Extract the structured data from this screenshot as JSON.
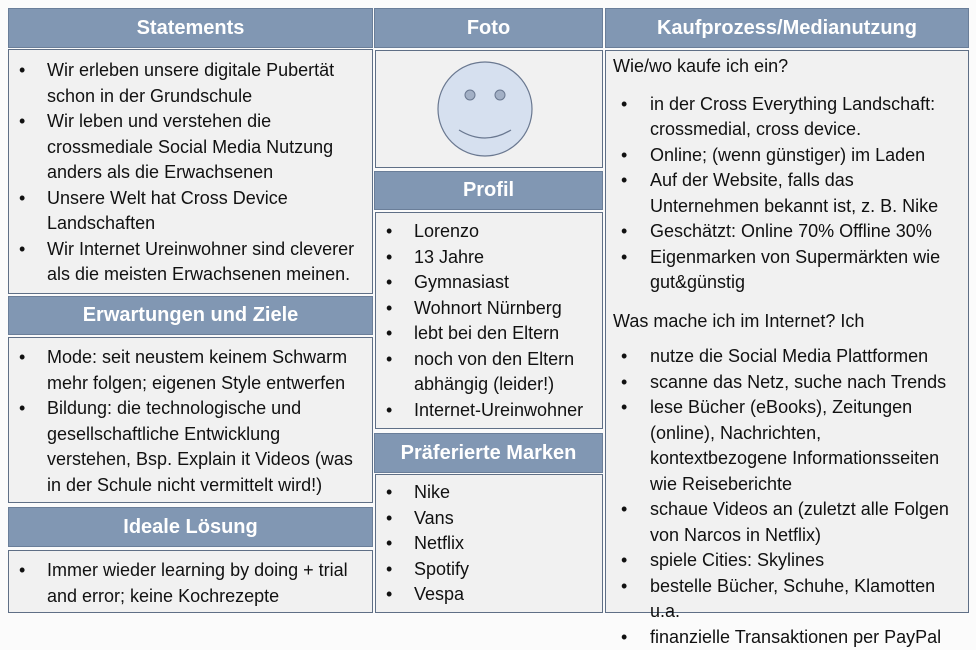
{
  "statements": {
    "title": "Statements",
    "items": [
      "Wir erleben unsere digitale Pubertät schon in der Grundschule",
      "Wir leben und verstehen die crossmediale Social Media Nutzung anders als die Erwachsenen",
      "Unsere Welt hat Cross Device Landschaften",
      "Wir Internet Ureinwohner sind cleverer als die meisten Erwachsenen meinen."
    ]
  },
  "erwartungen": {
    "title": "Erwartungen und Ziele",
    "items": [
      "Mode: seit neustem keinem Schwarm mehr folgen; eigenen Style entwerfen",
      "Bildung: die technologische und gesellschaftliche Entwicklung verstehen, Bsp. Explain it Videos (was in der Schule nicht vermittelt wird!)"
    ]
  },
  "loesung": {
    "title": "Ideale Lösung",
    "items": [
      "Immer wieder learning by doing + trial and error; keine Kochrezepte"
    ]
  },
  "foto": {
    "title": "Foto",
    "icon": "smiley-face-icon"
  },
  "profil": {
    "title": "Profil",
    "items": [
      "Lorenzo",
      "13 Jahre",
      "Gymnasiast",
      "Wohnort Nürnberg",
      "lebt bei den Eltern",
      "noch von den Eltern abhängig (leider!)",
      "Internet-Ureinwohner"
    ]
  },
  "marken": {
    "title": "Präferierte Marken",
    "items": [
      "Nike",
      "Vans",
      "Netflix",
      "Spotify",
      "Vespa"
    ]
  },
  "kauf": {
    "title": "Kaufprozess/Medianutzung",
    "q1": "Wie/wo kaufe ich ein?",
    "items1": [
      "in der Cross Everything Landschaft: crossmedial, cross device.",
      "Online; (wenn günstiger) im Laden",
      "Auf der Website, falls das Unternehmen bekannt ist, z. B. Nike",
      "Geschätzt: Online 70% Offline 30%",
      "Eigenmarken von Supermärkten wie gut&günstig"
    ],
    "q2": "Was mache ich im Internet? Ich",
    "items2": [
      "nutze die Social Media Plattformen",
      "scanne das Netz, suche nach Trends",
      "lese Bücher (eBooks), Zeitungen (online), Nachrichten, kontextbezogene Informationsseiten wie Reiseberichte",
      "schaue Videos an (zuletzt alle Folgen von Narcos in Netflix)",
      "spiele Cities: Skylines",
      "bestelle Bücher, Schuhe, Klamotten u.a.",
      "finanzielle Transaktionen per PayPal"
    ]
  },
  "colors": {
    "header": "#8197b3",
    "box": "#f1f1f1"
  }
}
